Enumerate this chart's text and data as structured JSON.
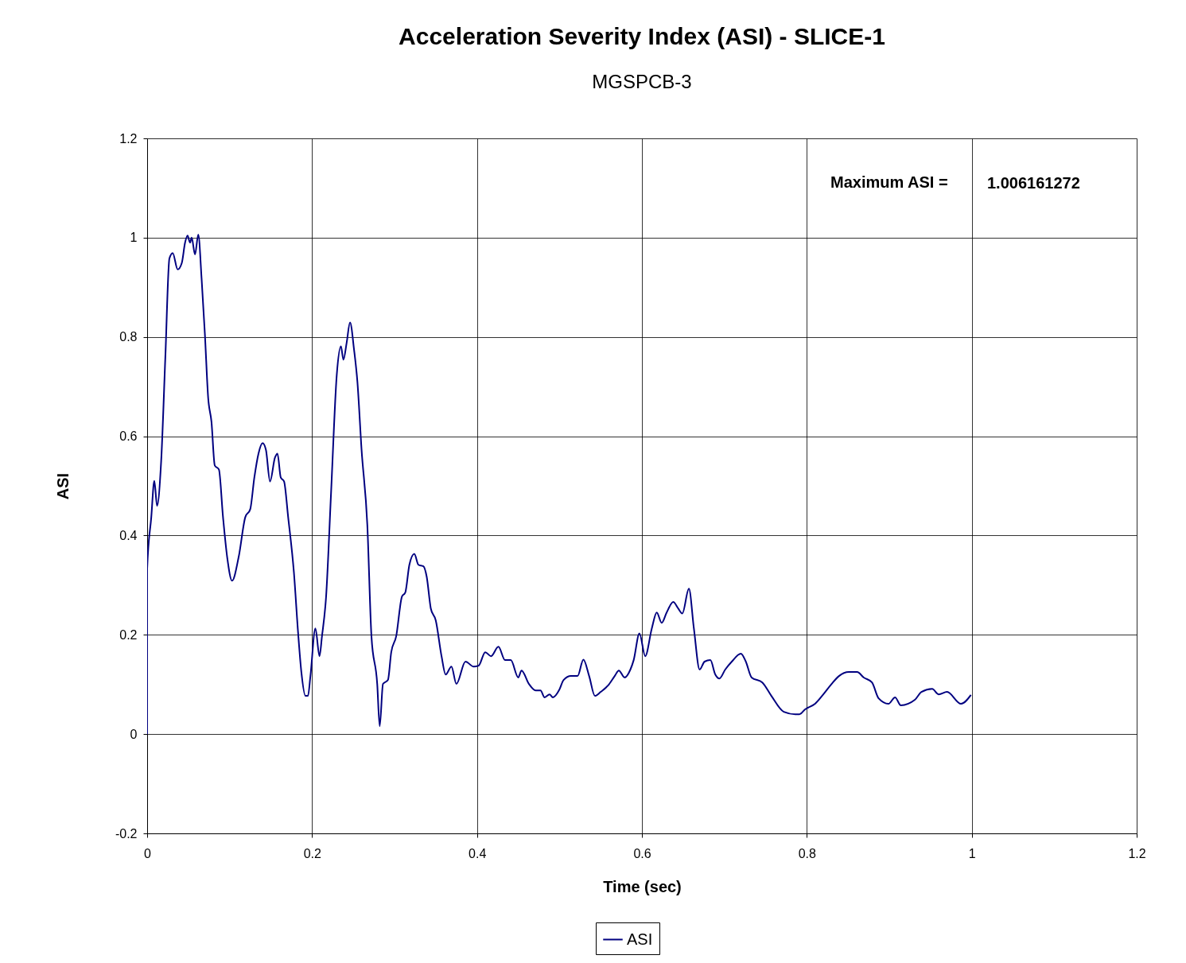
{
  "chart_data": {
    "type": "line",
    "title": "Acceleration Severity Index (ASI) - SLICE-1",
    "subtitle": "MGSPCB-3",
    "xlabel": "Time (sec)",
    "ylabel": "ASI",
    "annotations": [
      "Maximum ASI =",
      "1.006161272"
    ],
    "xlim": [
      0,
      1.2
    ],
    "xticks": [
      0,
      0.2,
      0.4,
      0.6,
      0.8,
      1,
      1.2
    ],
    "ylim": [
      -0.2,
      1.2
    ],
    "yticks": [
      -0.2,
      0,
      0.2,
      0.4,
      0.6,
      0.8,
      1,
      1.2
    ],
    "grid": true,
    "legend": "bottom",
    "marker": "none",
    "line_style": "solid",
    "series": [
      {
        "name": "ASI",
        "color": "#000080",
        "x": [
          0,
          0,
          0.005,
          0.0087,
          0.012,
          0.017,
          0.022,
          0.027,
          0.031,
          0.037,
          0.042,
          0.046,
          0.049,
          0.052,
          0.054,
          0.058,
          0.062,
          0.066,
          0.07,
          0.074,
          0.078,
          0.082,
          0.087,
          0.092,
          0.097,
          0.103,
          0.111,
          0.119,
          0.125,
          0.13,
          0.135,
          0.14,
          0.144,
          0.149,
          0.155,
          0.158,
          0.162,
          0.166,
          0.171,
          0.178,
          0.183,
          0.187,
          0.192,
          0.195,
          0.198,
          0.204,
          0.209,
          0.212,
          0.217,
          0.223,
          0.23,
          0.235,
          0.238,
          0.242,
          0.246,
          0.251,
          0.255,
          0.26,
          0.267,
          0.272,
          0.279,
          0.282,
          0.286,
          0.292,
          0.296,
          0.302,
          0.309,
          0.313,
          0.318,
          0.324,
          0.329,
          0.335,
          0.339,
          0.344,
          0.35,
          0.357,
          0.362,
          0.369,
          0.375,
          0.386,
          0.396,
          0.402,
          0.41,
          0.417,
          0.426,
          0.434,
          0.441,
          0.45,
          0.454,
          0.463,
          0.471,
          0.477,
          0.482,
          0.488,
          0.492,
          0.5,
          0.505,
          0.514,
          0.522,
          0.529,
          0.536,
          0.543,
          0.55,
          0.559,
          0.567,
          0.572,
          0.579,
          0.586,
          0.59,
          0.597,
          0.604,
          0.612,
          0.618,
          0.624,
          0.63,
          0.638,
          0.644,
          0.649,
          0.657,
          0.663,
          0.67,
          0.676,
          0.683,
          0.689,
          0.694,
          0.701,
          0.709,
          0.72,
          0.726,
          0.733,
          0.746,
          0.757,
          0.772,
          0.786,
          0.791,
          0.798,
          0.81,
          0.82,
          0.83,
          0.839,
          0.851,
          0.861,
          0.869,
          0.879,
          0.887,
          0.899,
          0.907,
          0.914,
          0.931,
          0.939,
          0.952,
          0.96,
          0.97,
          0.987,
          0.999
        ],
        "values": [
          0,
          0.333,
          0.437,
          0.51,
          0.46,
          0.55,
          0.757,
          0.958,
          0.969,
          0.936,
          0.949,
          0.99,
          1.004,
          0.99,
          1.0,
          0.966,
          1.006,
          0.918,
          0.806,
          0.677,
          0.629,
          0.541,
          0.533,
          0.437,
          0.357,
          0.309,
          0.357,
          0.437,
          0.453,
          0.517,
          0.565,
          0.586,
          0.573,
          0.509,
          0.557,
          0.565,
          0.517,
          0.509,
          0.437,
          0.325,
          0.205,
          0.125,
          0.077,
          0.077,
          0.117,
          0.213,
          0.157,
          0.197,
          0.277,
          0.485,
          0.725,
          0.781,
          0.754,
          0.789,
          0.829,
          0.773,
          0.709,
          0.573,
          0.421,
          0.197,
          0.101,
          0.016,
          0.101,
          0.109,
          0.165,
          0.197,
          0.277,
          0.285,
          0.341,
          0.363,
          0.341,
          0.338,
          0.317,
          0.253,
          0.229,
          0.157,
          0.12,
          0.136,
          0.101,
          0.146,
          0.136,
          0.138,
          0.165,
          0.157,
          0.176,
          0.149,
          0.149,
          0.114,
          0.128,
          0.101,
          0.088,
          0.088,
          0.074,
          0.08,
          0.074,
          0.09,
          0.109,
          0.117,
          0.117,
          0.15,
          0.117,
          0.077,
          0.085,
          0.098,
          0.117,
          0.128,
          0.114,
          0.13,
          0.149,
          0.203,
          0.157,
          0.213,
          0.245,
          0.224,
          0.245,
          0.266,
          0.253,
          0.243,
          0.293,
          0.213,
          0.13,
          0.146,
          0.149,
          0.12,
          0.112,
          0.13,
          0.146,
          0.162,
          0.146,
          0.114,
          0.104,
          0.077,
          0.045,
          0.04,
          0.04,
          0.05,
          0.061,
          0.08,
          0.101,
          0.117,
          0.125,
          0.125,
          0.114,
          0.104,
          0.072,
          0.061,
          0.074,
          0.058,
          0.069,
          0.085,
          0.091,
          0.08,
          0.085,
          0.061,
          0.079
        ]
      }
    ]
  }
}
